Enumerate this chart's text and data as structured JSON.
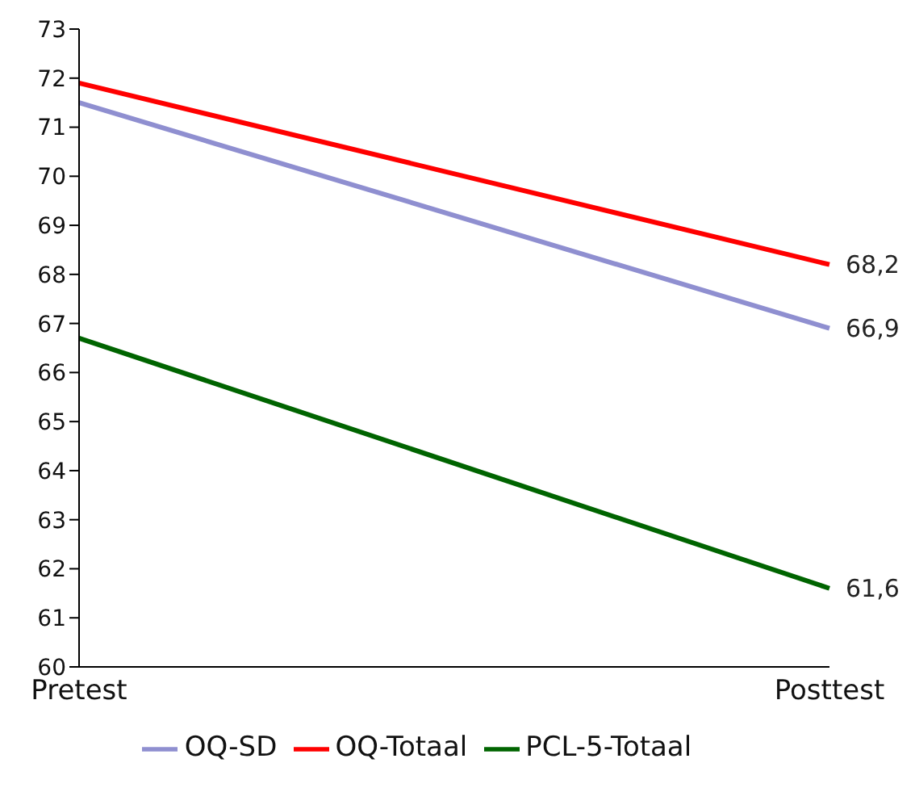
{
  "chart_data": {
    "type": "line",
    "categories": [
      "Pretest",
      "Posttest"
    ],
    "series": [
      {
        "name": "OQ-Totaal",
        "color": "#ff0000",
        "values": [
          71.9,
          68.2
        ],
        "value_labels": [
          null,
          "68,2"
        ]
      },
      {
        "name": "OQ-SD",
        "color": "#8f8fd0",
        "values": [
          71.5,
          66.9
        ],
        "value_labels": [
          null,
          "66,9"
        ]
      },
      {
        "name": "PCL-5-Totaal",
        "color": "#006400",
        "values": [
          66.7,
          61.6
        ],
        "value_labels": [
          null,
          "61,6"
        ]
      }
    ],
    "ylim": [
      60,
      73
    ],
    "yticks": [
      60,
      61,
      62,
      63,
      64,
      65,
      66,
      67,
      68,
      69,
      70,
      71,
      72,
      73
    ],
    "grid": false,
    "legend": "bottom",
    "marker": "none",
    "line_style": "solid"
  }
}
